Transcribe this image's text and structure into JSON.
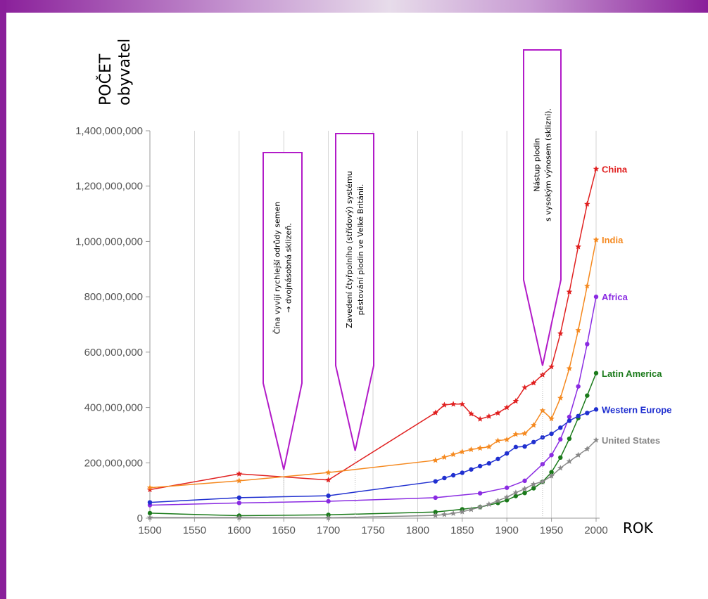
{
  "chart_data": {
    "type": "line",
    "title": "",
    "xlabel": "ROK",
    "ylabel_lines": [
      "POČET",
      "obyvatel"
    ],
    "xlim": [
      1500,
      2000
    ],
    "ylim": [
      0,
      1400000000
    ],
    "x_ticks": [
      1500,
      1550,
      1600,
      1650,
      1700,
      1750,
      1800,
      1850,
      1900,
      1950,
      2000
    ],
    "y_ticks": [
      0,
      200000000,
      400000000,
      600000000,
      800000000,
      1000000000,
      1200000000,
      1400000000
    ],
    "y_tick_labels": [
      "0",
      "200,000,000",
      "400,000,000",
      "600,000,000",
      "800,000,000",
      "1,000,000,000",
      "1,200,000,000",
      "1,400,000,000"
    ],
    "x_tick_labels": [
      "1500",
      "1550",
      "1600",
      "1650",
      "1700",
      "1750",
      "1800",
      "1850",
      "1900",
      "1950",
      "2000"
    ],
    "series": [
      {
        "name": "China",
        "color": "#e02020",
        "marker": "star",
        "x": [
          1500,
          1600,
          1700,
          1820,
          1830,
          1840,
          1850,
          1860,
          1870,
          1880,
          1890,
          1900,
          1910,
          1920,
          1930,
          1940,
          1950,
          1960,
          1970,
          1980,
          1990,
          2000
        ],
        "y": [
          103000000,
          160000000,
          138000000,
          381000000,
          409000000,
          412000000,
          412000000,
          377000000,
          358000000,
          368000000,
          380000000,
          400000000,
          423000000,
          472000000,
          489000000,
          518000000,
          547000000,
          667000000,
          818000000,
          981000000,
          1135000000,
          1262000000
        ]
      },
      {
        "name": "India",
        "color": "#f5891f",
        "marker": "star",
        "x": [
          1500,
          1600,
          1700,
          1820,
          1830,
          1840,
          1850,
          1860,
          1870,
          1880,
          1890,
          1900,
          1910,
          1920,
          1930,
          1940,
          1950,
          1960,
          1970,
          1980,
          1990,
          2000
        ],
        "y": [
          110000000,
          135000000,
          165000000,
          209000000,
          220000000,
          230000000,
          240000000,
          248000000,
          253000000,
          258000000,
          280000000,
          284000000,
          303000000,
          306000000,
          336000000,
          389000000,
          359000000,
          434000000,
          541000000,
          679000000,
          839000000,
          1006000000
        ]
      },
      {
        "name": "Africa",
        "color": "#8a2be2",
        "marker": "dot",
        "x": [
          1500,
          1600,
          1700,
          1820,
          1870,
          1900,
          1920,
          1940,
          1950,
          1960,
          1970,
          1980,
          1990,
          2000
        ],
        "y": [
          47000000,
          55000000,
          61000000,
          74000000,
          90000000,
          110000000,
          135000000,
          195000000,
          228000000,
          285000000,
          366000000,
          476000000,
          629000000,
          800000000
        ]
      },
      {
        "name": "Latin America",
        "color": "#1a7a1a",
        "marker": "dot",
        "x": [
          1500,
          1600,
          1700,
          1820,
          1850,
          1870,
          1890,
          1900,
          1910,
          1920,
          1930,
          1940,
          1950,
          1960,
          1970,
          1980,
          1990,
          2000
        ],
        "y": [
          18000000,
          9000000,
          12000000,
          22000000,
          32000000,
          40000000,
          55000000,
          65000000,
          80000000,
          91000000,
          108000000,
          131000000,
          166000000,
          219000000,
          287000000,
          362000000,
          443000000,
          524000000
        ]
      },
      {
        "name": "Western Europe",
        "color": "#2030d0",
        "marker": "dot",
        "x": [
          1500,
          1600,
          1700,
          1820,
          1830,
          1840,
          1850,
          1860,
          1870,
          1880,
          1890,
          1900,
          1910,
          1920,
          1930,
          1940,
          1950,
          1960,
          1970,
          1980,
          1990,
          2000
        ],
        "y": [
          57000000,
          74000000,
          81000000,
          133000000,
          145000000,
          155000000,
          164000000,
          176000000,
          188000000,
          198000000,
          214000000,
          234000000,
          257000000,
          259000000,
          275000000,
          292000000,
          305000000,
          327000000,
          352000000,
          369000000,
          380000000,
          393000000
        ]
      },
      {
        "name": "United States",
        "color": "#888888",
        "marker": "star",
        "x": [
          1500,
          1600,
          1700,
          1820,
          1830,
          1840,
          1850,
          1860,
          1870,
          1880,
          1890,
          1900,
          1910,
          1920,
          1930,
          1940,
          1950,
          1960,
          1970,
          1980,
          1990,
          2000
        ],
        "y": [
          2000000,
          2000000,
          1000000,
          10000000,
          13000000,
          17000000,
          23000000,
          31000000,
          40000000,
          50000000,
          63000000,
          76000000,
          92000000,
          106000000,
          123000000,
          132000000,
          152000000,
          181000000,
          205000000,
          228000000,
          250000000,
          282000000
        ]
      }
    ],
    "annotations": [
      {
        "id": "callout-1650",
        "lines": [
          "Čína vyvíjí rychlejší odrůdy semen",
          "→ dvojnásobná sklizeň."
        ],
        "target_x": 1650,
        "color": "#b21bc8"
      },
      {
        "id": "callout-1730",
        "lines": [
          "Zavedení čtyřpolního (střídový) systému",
          "pěstování plodin ve Velké Británii."
        ],
        "target_x": 1730,
        "color": "#b21bc8"
      },
      {
        "id": "callout-1940",
        "lines": [
          "Nástup plodin",
          "s vysokým výnosem (sklizní)."
        ],
        "target_x": 1940,
        "color": "#b21bc8"
      }
    ]
  },
  "theme": {
    "accent": "#8a1f9a",
    "grid": "#cccccc"
  }
}
